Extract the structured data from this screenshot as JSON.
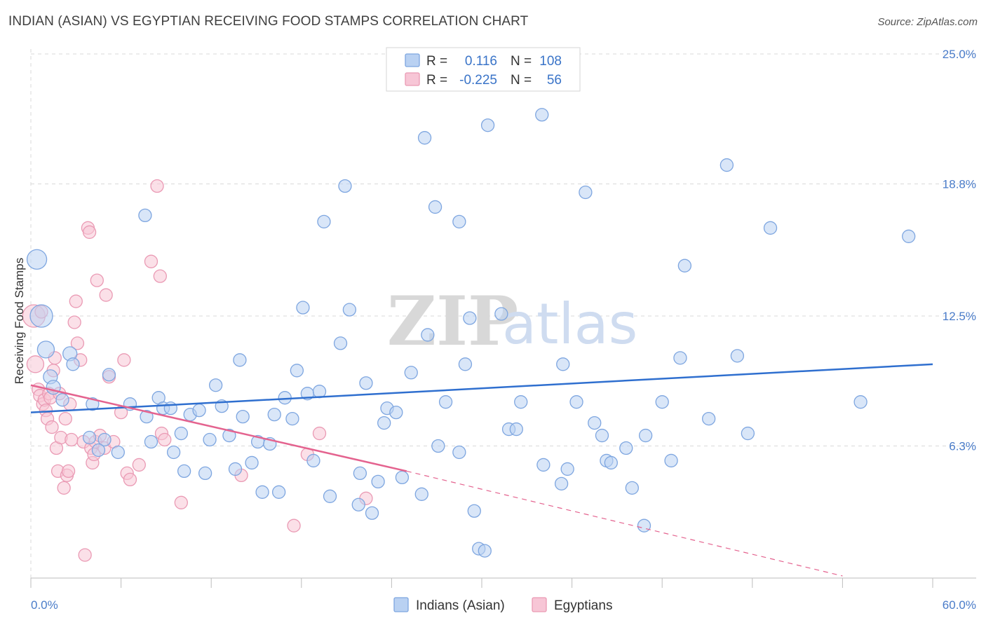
{
  "title": "INDIAN (ASIAN) VS EGYPTIAN RECEIVING FOOD STAMPS CORRELATION CHART",
  "source": "Source: ZipAtlas.com",
  "watermark": {
    "zip": "ZIP",
    "atlas": "atlas"
  },
  "colors": {
    "indian_fill": "#b9d1f2",
    "indian_stroke": "#7ea6e0",
    "indian_line": "#2f6fcf",
    "egypt_fill": "#f7c6d6",
    "egypt_stroke": "#ea9ab4",
    "egypt_line": "#e4638f",
    "grid": "#d9d9d9",
    "tick_text": "#4a7cc9"
  },
  "legend": {
    "rows": [
      {
        "r_label": "R =",
        "r_value": "0.116",
        "n_label": "N =",
        "n_value": "108"
      },
      {
        "r_label": "R =",
        "r_value": "-0.225",
        "n_label": "N =",
        "n_value": "56"
      }
    ]
  },
  "chart_data": {
    "type": "scatter",
    "xlabel": "",
    "ylabel": "Receiving Food Stamps",
    "xlim": [
      0,
      60
    ],
    "ylim": [
      0,
      25
    ],
    "x_tick_labels": [
      "0.0%",
      "60.0%"
    ],
    "y_ticks": [
      6.3,
      12.5,
      18.8,
      25.0
    ],
    "y_tick_labels": [
      "6.3%",
      "12.5%",
      "18.8%",
      "25.0%"
    ],
    "grid": true,
    "legend_position": "top-center",
    "series": [
      {
        "name": "Indians (Asian)",
        "r": 0.116,
        "n": 108,
        "trend": {
          "x": [
            0,
            60
          ],
          "y": [
            7.9,
            10.2
          ],
          "style": "solid"
        },
        "points": [
          [
            0.4,
            15.2,
            14
          ],
          [
            0.7,
            12.5,
            16
          ],
          [
            1.0,
            10.9,
            12
          ],
          [
            1.3,
            9.6,
            10
          ],
          [
            1.5,
            9.1,
            10
          ],
          [
            2.1,
            8.5,
            9
          ],
          [
            2.6,
            10.7,
            10
          ],
          [
            2.8,
            10.2,
            9
          ],
          [
            4.1,
            8.3,
            9
          ],
          [
            3.9,
            6.7,
            9
          ],
          [
            4.9,
            6.6,
            9
          ],
          [
            4.5,
            6.1,
            9
          ],
          [
            5.2,
            9.7,
            9
          ],
          [
            5.8,
            6.0,
            9
          ],
          [
            6.6,
            8.3,
            9
          ],
          [
            7.6,
            17.3,
            9
          ],
          [
            7.7,
            7.7,
            9
          ],
          [
            8.0,
            6.5,
            9
          ],
          [
            8.5,
            8.6,
            9
          ],
          [
            8.8,
            8.1,
            9
          ],
          [
            9.3,
            8.1,
            9
          ],
          [
            9.5,
            6.0,
            9
          ],
          [
            10.0,
            6.9,
            9
          ],
          [
            10.2,
            5.1,
            9
          ],
          [
            10.6,
            7.8,
            9
          ],
          [
            11.2,
            8.0,
            9
          ],
          [
            11.6,
            5.0,
            9
          ],
          [
            11.9,
            6.6,
            9
          ],
          [
            12.3,
            9.2,
            9
          ],
          [
            12.7,
            8.2,
            9
          ],
          [
            13.2,
            6.8,
            9
          ],
          [
            13.6,
            5.2,
            9
          ],
          [
            13.9,
            10.4,
            9
          ],
          [
            14.1,
            7.7,
            9
          ],
          [
            14.7,
            5.5,
            9
          ],
          [
            15.1,
            6.5,
            9
          ],
          [
            15.4,
            4.1,
            9
          ],
          [
            15.9,
            6.4,
            9
          ],
          [
            16.2,
            7.8,
            9
          ],
          [
            16.5,
            4.1,
            9
          ],
          [
            16.9,
            8.6,
            9
          ],
          [
            17.4,
            7.6,
            9
          ],
          [
            17.7,
            9.9,
            9
          ],
          [
            18.1,
            12.9,
            9
          ],
          [
            18.4,
            8.8,
            9
          ],
          [
            18.8,
            5.6,
            9
          ],
          [
            19.2,
            8.9,
            9
          ],
          [
            19.5,
            17.0,
            9
          ],
          [
            19.9,
            3.9,
            9
          ],
          [
            20.6,
            11.2,
            9
          ],
          [
            20.9,
            18.7,
            9
          ],
          [
            21.2,
            12.8,
            9
          ],
          [
            21.9,
            5.0,
            9
          ],
          [
            21.8,
            3.5,
            9
          ],
          [
            22.3,
            9.3,
            9
          ],
          [
            22.7,
            3.1,
            9
          ],
          [
            23.1,
            4.6,
            9
          ],
          [
            23.5,
            7.4,
            9
          ],
          [
            23.7,
            8.1,
            9
          ],
          [
            24.3,
            7.9,
            9
          ],
          [
            24.7,
            4.8,
            9
          ],
          [
            25.3,
            9.8,
            9
          ],
          [
            26.0,
            4.0,
            9
          ],
          [
            26.2,
            21.0,
            9
          ],
          [
            26.4,
            11.6,
            9
          ],
          [
            26.9,
            17.7,
            9
          ],
          [
            27.1,
            6.3,
            9
          ],
          [
            27.6,
            8.4,
            9
          ],
          [
            28.5,
            17.0,
            9
          ],
          [
            28.5,
            6.0,
            9
          ],
          [
            28.9,
            10.2,
            9
          ],
          [
            29.2,
            12.4,
            9
          ],
          [
            29.5,
            3.2,
            9
          ],
          [
            29.8,
            1.4,
            9
          ],
          [
            30.2,
            1.3,
            9
          ],
          [
            30.4,
            21.6,
            9
          ],
          [
            31.3,
            12.6,
            9
          ],
          [
            31.8,
            7.1,
            9
          ],
          [
            32.3,
            7.1,
            9
          ],
          [
            32.6,
            8.4,
            9
          ],
          [
            34.0,
            22.1,
            9
          ],
          [
            34.1,
            5.4,
            9
          ],
          [
            35.3,
            4.5,
            9
          ],
          [
            35.4,
            10.2,
            9
          ],
          [
            35.7,
            5.2,
            9
          ],
          [
            36.3,
            8.4,
            9
          ],
          [
            36.9,
            18.4,
            9
          ],
          [
            37.5,
            7.4,
            9
          ],
          [
            38.0,
            6.8,
            9
          ],
          [
            38.3,
            5.6,
            9
          ],
          [
            38.6,
            5.5,
            9
          ],
          [
            39.6,
            6.2,
            9
          ],
          [
            40.0,
            4.3,
            9
          ],
          [
            40.9,
            6.8,
            9
          ],
          [
            40.8,
            2.5,
            9
          ],
          [
            42.0,
            8.4,
            9
          ],
          [
            42.6,
            5.6,
            9
          ],
          [
            43.2,
            10.5,
            9
          ],
          [
            43.5,
            14.9,
            9
          ],
          [
            45.1,
            7.6,
            9
          ],
          [
            46.3,
            19.7,
            9
          ],
          [
            47.0,
            10.6,
            9
          ],
          [
            47.7,
            6.9,
            9
          ],
          [
            49.2,
            16.7,
            9
          ],
          [
            55.2,
            8.4,
            9
          ],
          [
            58.4,
            16.3,
            9
          ]
        ]
      },
      {
        "name": "Egyptians",
        "r": -0.225,
        "n": 56,
        "trend": {
          "x": [
            0,
            25
          ],
          "y": [
            9.2,
            5.1
          ],
          "style": "solid",
          "dashed_extension": {
            "x": [
              25,
              54
            ],
            "y": [
              5.1,
              0.1
            ]
          }
        },
        "points": [
          [
            0.2,
            12.5,
            16
          ],
          [
            0.3,
            10.2,
            12
          ],
          [
            0.5,
            9.0,
            9
          ],
          [
            0.6,
            8.7,
            9
          ],
          [
            0.7,
            12.7,
            9
          ],
          [
            0.8,
            8.3,
            9
          ],
          [
            0.9,
            8.5,
            9
          ],
          [
            1.0,
            8.0,
            9
          ],
          [
            1.1,
            7.6,
            9
          ],
          [
            1.2,
            8.8,
            9
          ],
          [
            1.3,
            8.6,
            9
          ],
          [
            1.4,
            7.2,
            9
          ],
          [
            1.5,
            9.9,
            9
          ],
          [
            1.6,
            10.5,
            9
          ],
          [
            1.7,
            6.2,
            9
          ],
          [
            1.8,
            5.1,
            9
          ],
          [
            1.9,
            8.8,
            9
          ],
          [
            2.0,
            6.7,
            9
          ],
          [
            2.2,
            4.3,
            9
          ],
          [
            2.3,
            7.6,
            9
          ],
          [
            2.4,
            4.9,
            9
          ],
          [
            2.5,
            5.1,
            9
          ],
          [
            2.6,
            8.3,
            9
          ],
          [
            2.7,
            6.6,
            9
          ],
          [
            2.9,
            12.2,
            9
          ],
          [
            3.0,
            13.2,
            9
          ],
          [
            3.1,
            11.2,
            9
          ],
          [
            3.3,
            10.4,
            9
          ],
          [
            3.5,
            6.5,
            9
          ],
          [
            3.6,
            1.1,
            9
          ],
          [
            3.8,
            16.7,
            9
          ],
          [
            3.9,
            16.5,
            9
          ],
          [
            4.0,
            6.2,
            9
          ],
          [
            4.1,
            5.5,
            9
          ],
          [
            4.2,
            5.9,
            9
          ],
          [
            4.3,
            6.5,
            9
          ],
          [
            4.4,
            14.2,
            9
          ],
          [
            4.6,
            6.8,
            9
          ],
          [
            4.9,
            6.2,
            9
          ],
          [
            5.0,
            13.5,
            9
          ],
          [
            5.2,
            9.6,
            9
          ],
          [
            5.5,
            6.5,
            9
          ],
          [
            6.0,
            7.9,
            9
          ],
          [
            6.2,
            10.4,
            9
          ],
          [
            6.4,
            5.0,
            9
          ],
          [
            6.6,
            4.7,
            9
          ],
          [
            7.2,
            5.4,
            9
          ],
          [
            8.0,
            15.1,
            9
          ],
          [
            8.4,
            18.7,
            9
          ],
          [
            8.6,
            14.4,
            9
          ],
          [
            8.7,
            6.9,
            9
          ],
          [
            8.9,
            6.6,
            9
          ],
          [
            10.0,
            3.6,
            9
          ],
          [
            14.0,
            4.9,
            9
          ],
          [
            17.5,
            2.5,
            9
          ],
          [
            18.4,
            5.9,
            9
          ],
          [
            19.2,
            6.9,
            9
          ],
          [
            22.3,
            3.8,
            9
          ]
        ]
      }
    ]
  }
}
